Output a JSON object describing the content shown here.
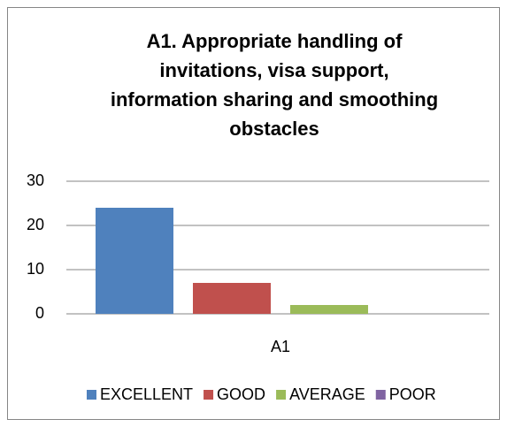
{
  "chart_data": {
    "type": "bar",
    "title": "A1. Appropriate handling of\ninvitations, visa support,\ninformation sharing and smoothing\nobstacles",
    "categories": [
      "A1"
    ],
    "series": [
      {
        "name": "EXCELLENT",
        "color": "#4f81bd",
        "values": [
          24
        ]
      },
      {
        "name": "GOOD",
        "color": "#c0504d",
        "values": [
          7
        ]
      },
      {
        "name": "AVERAGE",
        "color": "#9bbb59",
        "values": [
          2
        ]
      },
      {
        "name": "POOR",
        "color": "#8064a2",
        "values": [
          0
        ]
      }
    ],
    "ylim": [
      0,
      30
    ],
    "yticks": [
      0,
      10,
      20,
      30
    ],
    "grid": true,
    "legend": "bottom"
  }
}
